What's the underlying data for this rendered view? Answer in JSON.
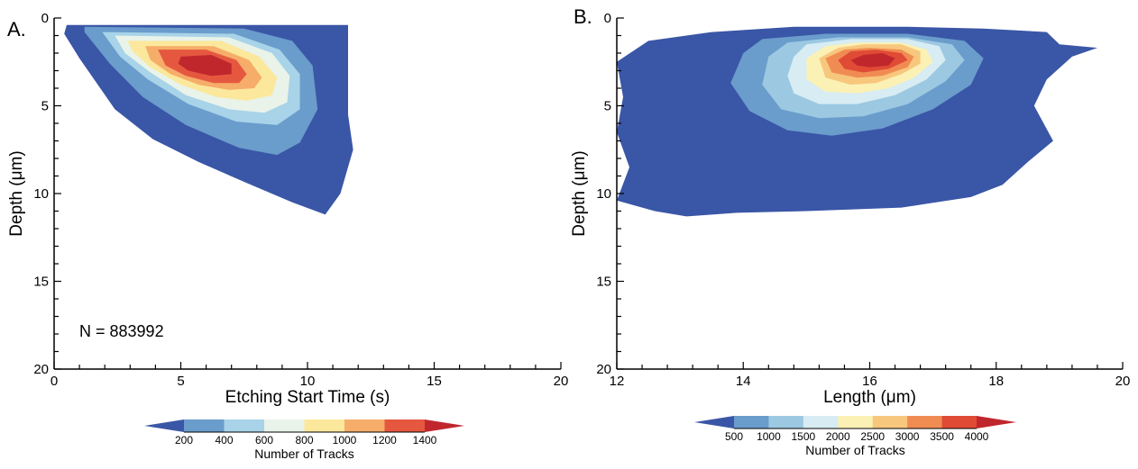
{
  "chart_data": [
    {
      "type": "heatmap",
      "subtype": "filled-contour",
      "panel_label": "A.",
      "xlabel": "Etching Start Time (s)",
      "ylabel": "Depth (μm)",
      "xlim": [
        0,
        20
      ],
      "ylim": [
        0,
        20
      ],
      "y_inverted": true,
      "xticks": [
        0,
        5,
        10,
        15,
        20
      ],
      "yticks": [
        0,
        5,
        10,
        15,
        20
      ],
      "grid": false,
      "annotation": "N = 883992",
      "colorbar": {
        "title": "Number of Tracks",
        "levels": [
          200,
          400,
          600,
          800,
          1000,
          1200,
          1400
        ],
        "extend": "both",
        "colors": [
          "#3a56a6",
          "#6a9ccc",
          "#a8d3e8",
          "#e9f3ea",
          "#fbe89c",
          "#f6ad6a",
          "#e5583f",
          "#c0272d"
        ]
      },
      "contours": [
        {
          "level_index": 0,
          "points": [
            [
              0.5,
              0.4
            ],
            [
              11.6,
              0.4
            ],
            [
              11.6,
              5.5
            ],
            [
              11.8,
              7.5
            ],
            [
              11.3,
              10.0
            ],
            [
              10.7,
              11.2
            ],
            [
              9.4,
              10.5
            ],
            [
              7.6,
              9.4
            ],
            [
              5.7,
              8.2
            ],
            [
              3.9,
              6.9
            ],
            [
              2.4,
              5.2
            ],
            [
              1.0,
              2.3
            ],
            [
              0.4,
              0.9
            ]
          ]
        },
        {
          "level_index": 1,
          "points": [
            [
              1.2,
              0.5
            ],
            [
              7.5,
              0.6
            ],
            [
              9.4,
              1.3
            ],
            [
              10.2,
              2.7
            ],
            [
              10.4,
              5.2
            ],
            [
              9.7,
              7.1
            ],
            [
              8.8,
              7.8
            ],
            [
              7.3,
              7.4
            ],
            [
              5.2,
              6.1
            ],
            [
              3.5,
              4.5
            ],
            [
              2.2,
              2.6
            ],
            [
              1.2,
              0.8
            ]
          ]
        },
        {
          "level_index": 2,
          "points": [
            [
              1.9,
              0.8
            ],
            [
              7.1,
              0.9
            ],
            [
              8.9,
              1.8
            ],
            [
              9.7,
              3.2
            ],
            [
              9.7,
              5.2
            ],
            [
              8.8,
              6.1
            ],
            [
              7.2,
              5.9
            ],
            [
              5.3,
              4.9
            ],
            [
              3.7,
              3.5
            ],
            [
              2.6,
              2.2
            ],
            [
              2.1,
              1.2
            ]
          ]
        },
        {
          "level_index": 3,
          "points": [
            [
              2.4,
              1.0
            ],
            [
              6.9,
              1.1
            ],
            [
              8.6,
              2.0
            ],
            [
              9.3,
              3.3
            ],
            [
              9.2,
              4.8
            ],
            [
              8.3,
              5.4
            ],
            [
              6.9,
              5.2
            ],
            [
              5.2,
              4.4
            ],
            [
              3.8,
              3.1
            ],
            [
              2.8,
              2.0
            ]
          ]
        },
        {
          "level_index": 4,
          "points": [
            [
              2.9,
              1.3
            ],
            [
              6.6,
              1.3
            ],
            [
              8.1,
              2.2
            ],
            [
              8.8,
              3.4
            ],
            [
              8.6,
              4.4
            ],
            [
              7.6,
              4.7
            ],
            [
              6.4,
              4.5
            ],
            [
              5.0,
              3.8
            ],
            [
              3.8,
              2.8
            ],
            [
              3.1,
              1.9
            ]
          ]
        },
        {
          "level_index": 5,
          "points": [
            [
              3.6,
              1.6
            ],
            [
              6.3,
              1.6
            ],
            [
              7.7,
              2.4
            ],
            [
              8.2,
              3.4
            ],
            [
              7.9,
              4.0
            ],
            [
              6.9,
              4.1
            ],
            [
              5.7,
              3.8
            ],
            [
              4.6,
              3.2
            ],
            [
              3.8,
              2.4
            ]
          ]
        },
        {
          "level_index": 6,
          "points": [
            [
              4.1,
              1.8
            ],
            [
              6.0,
              1.8
            ],
            [
              7.2,
              2.4
            ],
            [
              7.6,
              3.2
            ],
            [
              7.3,
              3.7
            ],
            [
              6.3,
              3.7
            ],
            [
              5.2,
              3.3
            ],
            [
              4.4,
              2.7
            ]
          ]
        },
        {
          "level_index": 7,
          "points": [
            [
              5.0,
              2.2
            ],
            [
              6.2,
              2.1
            ],
            [
              7.0,
              2.6
            ],
            [
              7.0,
              3.2
            ],
            [
              6.2,
              3.3
            ],
            [
              5.3,
              3.0
            ],
            [
              4.9,
              2.6
            ]
          ]
        }
      ]
    },
    {
      "type": "heatmap",
      "subtype": "filled-contour",
      "panel_label": "B.",
      "xlabel": "Length (μm)",
      "ylabel": "Depth (μm)",
      "xlim": [
        12,
        20
      ],
      "ylim": [
        0,
        20
      ],
      "y_inverted": true,
      "xticks": [
        12,
        14,
        16,
        18,
        20
      ],
      "yticks": [
        0,
        5,
        10,
        15,
        20
      ],
      "grid": false,
      "colorbar": {
        "title": "Number of Tracks",
        "levels": [
          500,
          1000,
          1500,
          2000,
          2500,
          3000,
          3500,
          4000
        ],
        "extend": "both",
        "colors": [
          "#3a56a6",
          "#6a9ccc",
          "#9cc8e2",
          "#d7ecf3",
          "#fbf1b4",
          "#f8c77e",
          "#f08c52",
          "#e04b35",
          "#c0272d"
        ]
      },
      "contours": [
        {
          "level_index": 0,
          "points": [
            [
              12.5,
              1.3
            ],
            [
              13.5,
              0.8
            ],
            [
              14.8,
              0.5
            ],
            [
              16.6,
              0.5
            ],
            [
              17.8,
              0.6
            ],
            [
              18.8,
              0.8
            ],
            [
              19.0,
              1.5
            ],
            [
              19.6,
              1.7
            ],
            [
              19.2,
              2.2
            ],
            [
              18.8,
              3.5
            ],
            [
              18.6,
              5.0
            ],
            [
              18.9,
              7.0
            ],
            [
              18.5,
              8.2
            ],
            [
              18.1,
              9.5
            ],
            [
              17.6,
              10.2
            ],
            [
              16.5,
              10.8
            ],
            [
              15.0,
              11.0
            ],
            [
              13.9,
              11.1
            ],
            [
              13.1,
              11.3
            ],
            [
              12.6,
              11.0
            ],
            [
              12.0,
              10.4
            ],
            [
              12.2,
              8.5
            ],
            [
              12.0,
              6.5
            ],
            [
              12.1,
              4.5
            ],
            [
              12.0,
              2.5
            ]
          ]
        },
        {
          "level_index": 1,
          "points": [
            [
              14.0,
              2.0
            ],
            [
              14.3,
              1.2
            ],
            [
              15.3,
              0.9
            ],
            [
              16.6,
              0.9
            ],
            [
              17.5,
              1.3
            ],
            [
              17.8,
              2.3
            ],
            [
              17.6,
              3.8
            ],
            [
              17.0,
              5.2
            ],
            [
              16.2,
              6.3
            ],
            [
              15.4,
              6.7
            ],
            [
              14.7,
              6.4
            ],
            [
              14.1,
              5.3
            ],
            [
              13.8,
              3.7
            ]
          ]
        },
        {
          "level_index": 2,
          "points": [
            [
              14.4,
              2.2
            ],
            [
              14.7,
              1.4
            ],
            [
              15.5,
              1.1
            ],
            [
              16.6,
              1.1
            ],
            [
              17.3,
              1.5
            ],
            [
              17.5,
              2.4
            ],
            [
              17.2,
              3.6
            ],
            [
              16.6,
              4.9
            ],
            [
              15.9,
              5.6
            ],
            [
              15.2,
              5.7
            ],
            [
              14.6,
              5.2
            ],
            [
              14.3,
              3.8
            ]
          ]
        },
        {
          "level_index": 3,
          "points": [
            [
              14.8,
              2.2
            ],
            [
              15.0,
              1.5
            ],
            [
              15.7,
              1.2
            ],
            [
              16.6,
              1.2
            ],
            [
              17.1,
              1.6
            ],
            [
              17.2,
              2.4
            ],
            [
              16.9,
              3.5
            ],
            [
              16.4,
              4.4
            ],
            [
              15.8,
              4.9
            ],
            [
              15.2,
              4.9
            ],
            [
              14.8,
              4.3
            ],
            [
              14.7,
              3.3
            ]
          ]
        },
        {
          "level_index": 4,
          "points": [
            [
              15.0,
              2.3
            ],
            [
              15.3,
              1.6
            ],
            [
              15.8,
              1.4
            ],
            [
              16.5,
              1.4
            ],
            [
              16.9,
              1.8
            ],
            [
              17.0,
              2.5
            ],
            [
              16.7,
              3.4
            ],
            [
              16.3,
              4.0
            ],
            [
              15.8,
              4.3
            ],
            [
              15.3,
              4.2
            ],
            [
              15.0,
              3.5
            ]
          ]
        },
        {
          "level_index": 5,
          "points": [
            [
              15.2,
              2.3
            ],
            [
              15.5,
              1.7
            ],
            [
              15.9,
              1.5
            ],
            [
              16.5,
              1.5
            ],
            [
              16.8,
              1.9
            ],
            [
              16.8,
              2.6
            ],
            [
              16.5,
              3.2
            ],
            [
              16.1,
              3.7
            ],
            [
              15.7,
              3.8
            ],
            [
              15.3,
              3.4
            ]
          ]
        },
        {
          "level_index": 6,
          "points": [
            [
              15.3,
              2.3
            ],
            [
              15.6,
              1.8
            ],
            [
              16.0,
              1.7
            ],
            [
              16.5,
              1.8
            ],
            [
              16.7,
              2.2
            ],
            [
              16.6,
              2.8
            ],
            [
              16.2,
              3.3
            ],
            [
              15.8,
              3.4
            ],
            [
              15.4,
              3.1
            ]
          ]
        },
        {
          "level_index": 7,
          "points": [
            [
              15.5,
              2.4
            ],
            [
              15.7,
              1.9
            ],
            [
              16.1,
              1.8
            ],
            [
              16.5,
              2.0
            ],
            [
              16.6,
              2.4
            ],
            [
              16.3,
              2.9
            ],
            [
              15.9,
              3.1
            ],
            [
              15.6,
              2.9
            ]
          ]
        },
        {
          "level_index": 8,
          "points": [
            [
              15.7,
              2.4
            ],
            [
              15.9,
              2.1
            ],
            [
              16.2,
              2.0
            ],
            [
              16.4,
              2.3
            ],
            [
              16.3,
              2.7
            ],
            [
              16.0,
              2.8
            ],
            [
              15.8,
              2.7
            ]
          ]
        }
      ]
    }
  ]
}
